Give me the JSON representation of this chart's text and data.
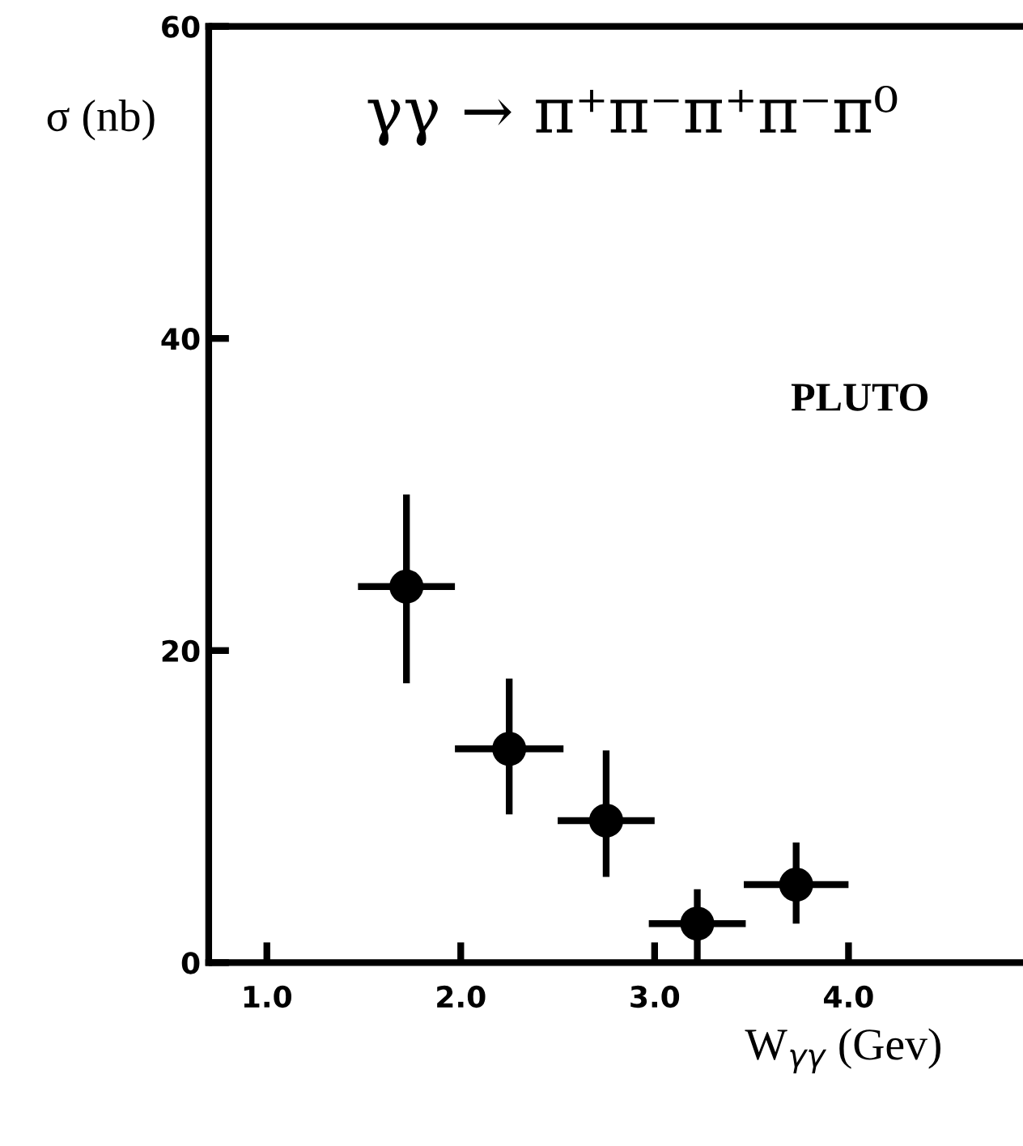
{
  "chart_data": {
    "type": "scatter",
    "title": "γγ → π⁺π⁻π⁺π⁻π⁰",
    "xlabel": "W$_{γγ}$ (Gev)",
    "ylabel": "σ (nb)",
    "annotations": [
      "PLUTO"
    ],
    "x": [
      1.72,
      2.25,
      2.75,
      3.22,
      3.73
    ],
    "series": [
      {
        "color": "#000000",
        "values": [
          24.1,
          13.7,
          9.1,
          2.5,
          5.0
        ],
        "errors": [
          [
            17.9,
            30.0
          ],
          [
            9.5,
            18.2
          ],
          [
            5.5,
            13.6
          ],
          [
            0,
            4.7
          ],
          [
            2.5,
            7.7
          ]
        ],
        "xerrors": [
          0.25,
          0.28,
          0.25,
          0.25,
          0.27
        ]
      }
    ],
    "marker": "circle",
    "xlim": [
      0.7,
      4.9
    ],
    "ylim": [
      0,
      60
    ],
    "xticks": [
      {
        "value": 1,
        "label": "1.0"
      },
      {
        "value": 2,
        "label": "2.0"
      },
      {
        "value": 3,
        "label": "3.0"
      },
      {
        "value": 4,
        "label": "4.0"
      }
    ],
    "yticks": [
      0,
      20,
      40,
      60
    ],
    "grid": false,
    "legend": false
  }
}
